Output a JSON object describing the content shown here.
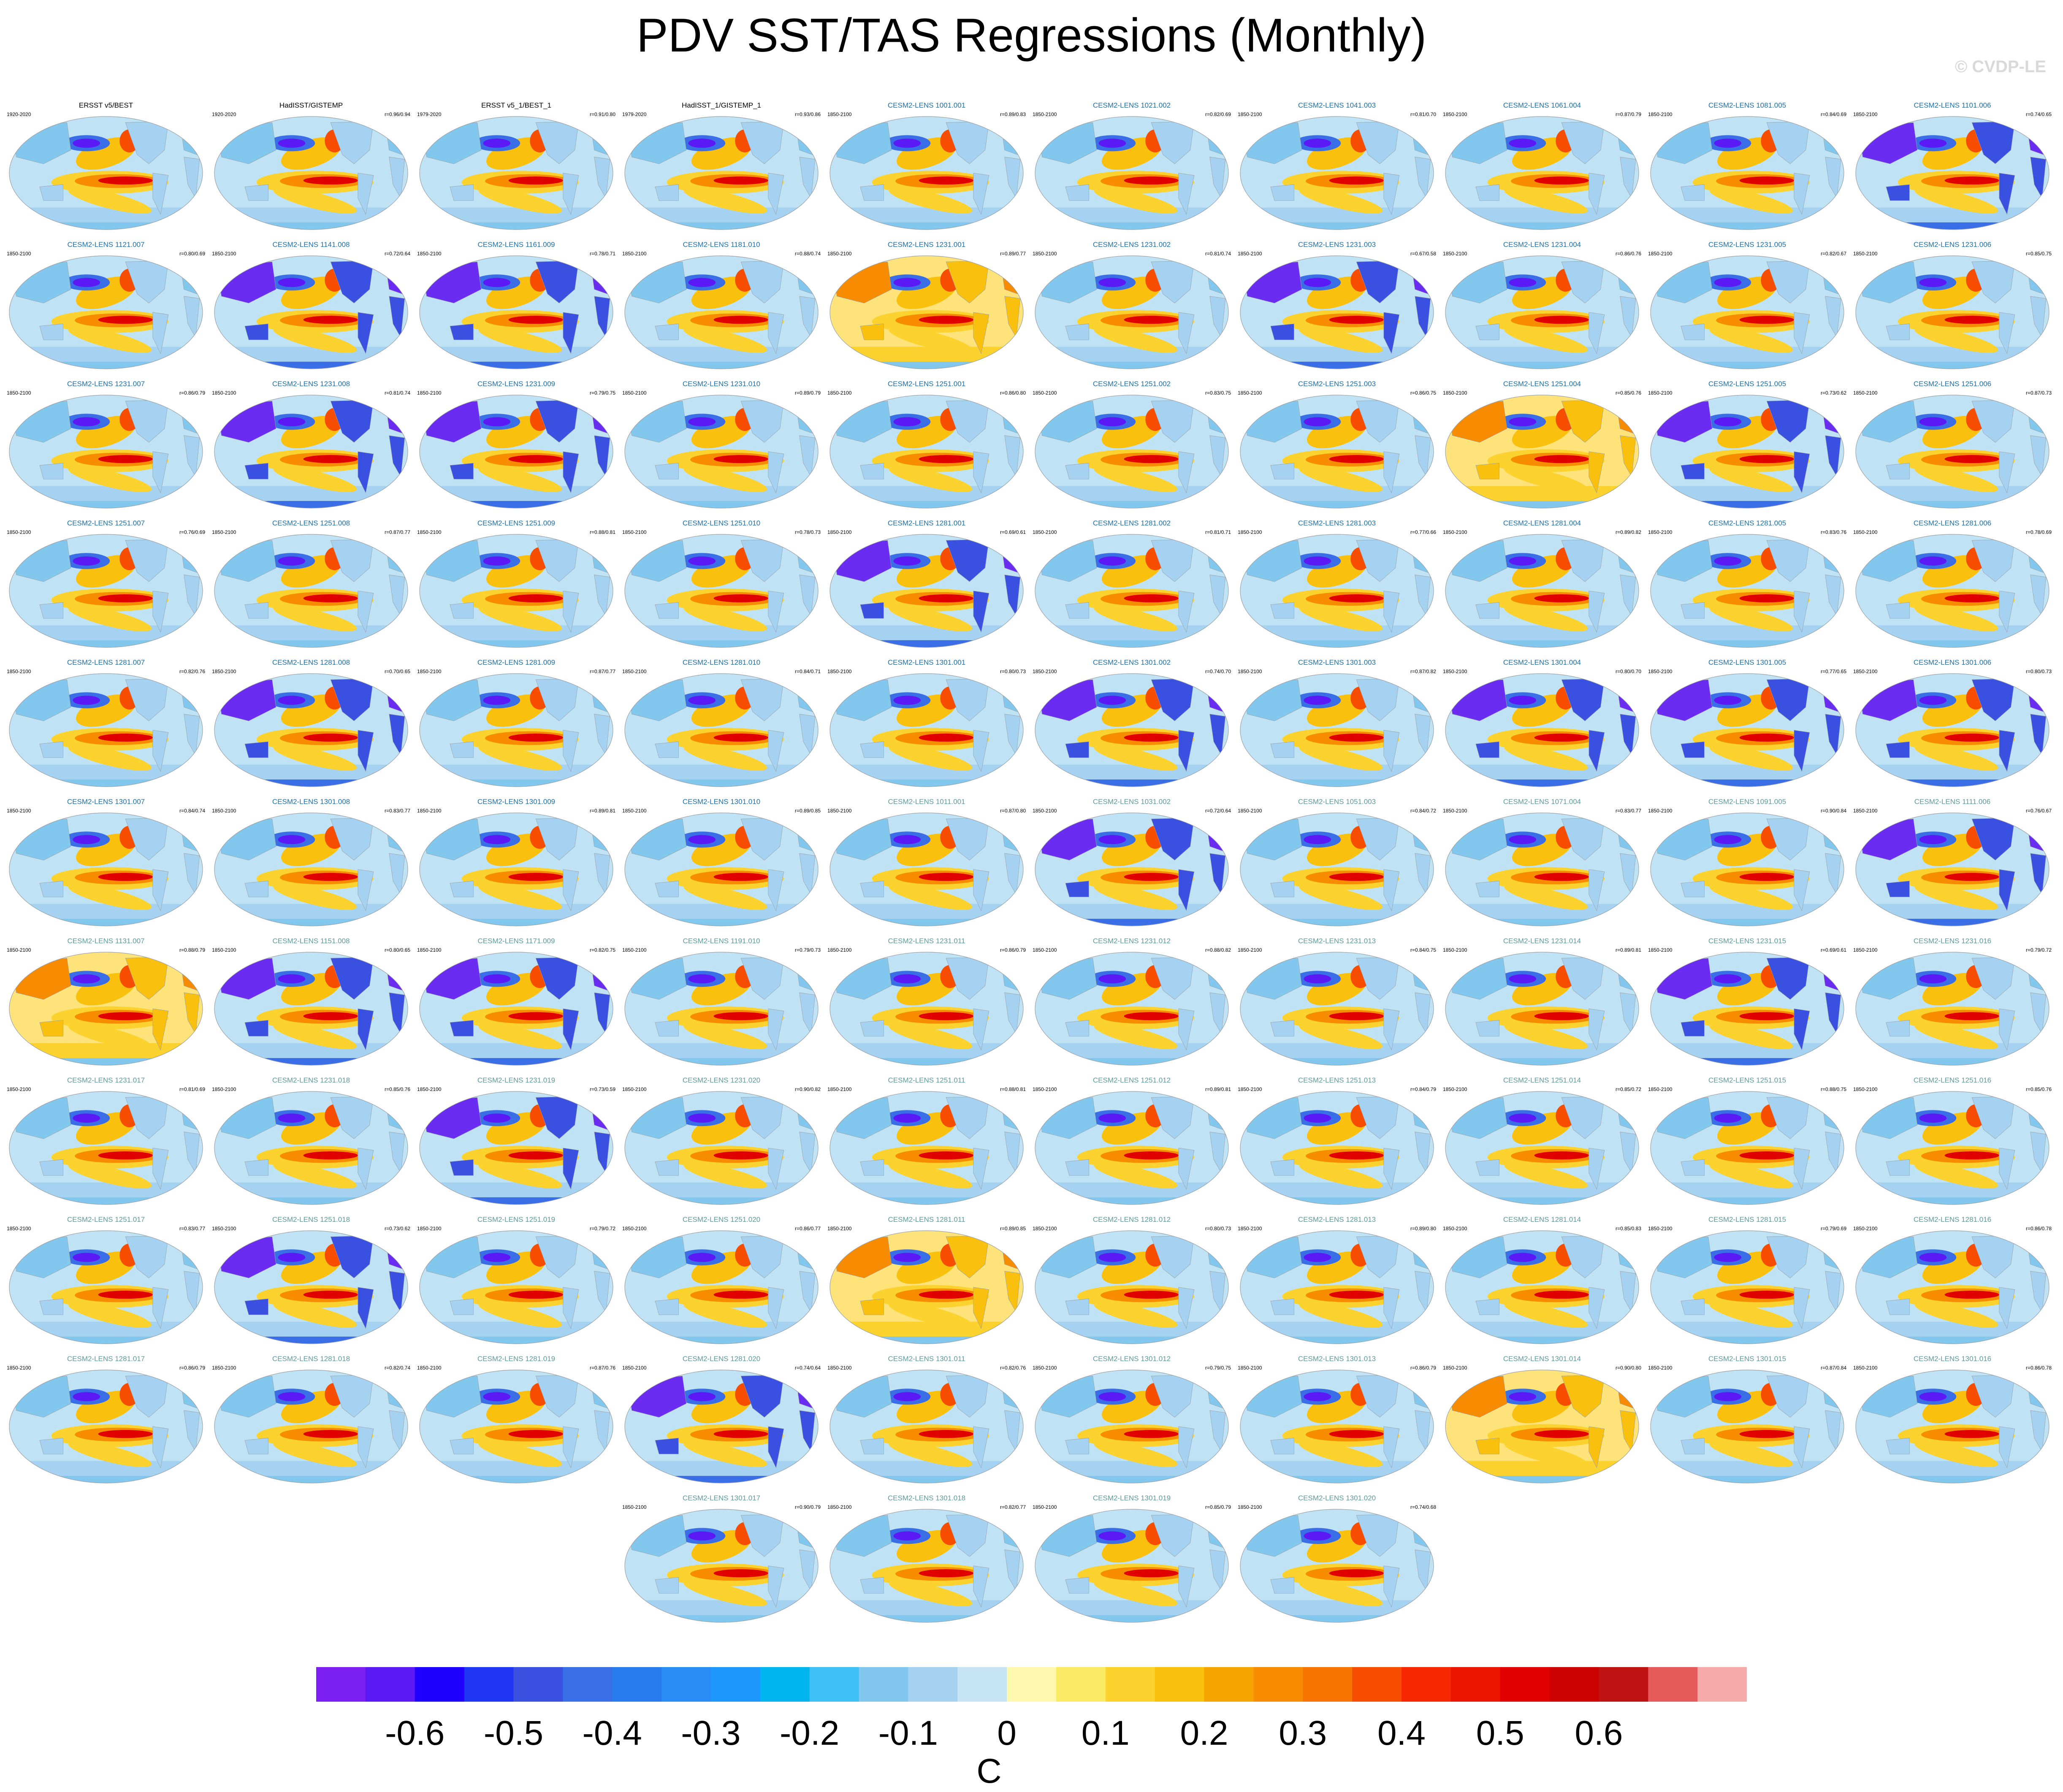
{
  "title": "PDV SST/TAS Regressions (Monthly)",
  "watermark": "© CVDP-LE",
  "colors": {
    "obs_title": "#000000",
    "lens_title_a": "#1f6fa8",
    "lens_title_b": "#5f9a9a",
    "map_border": "#9aa0a6"
  },
  "panels": [
    {
      "title": "ERSST v5/BEST",
      "period": "1920-2020",
      "r": "",
      "style": "obs",
      "pattern": "obs"
    },
    {
      "title": "HadISST/GISTEMP",
      "period": "1920-2020",
      "r": "r=0.96/0.94",
      "style": "obs",
      "pattern": "obs"
    },
    {
      "title": "ERSST v5_1/BEST_1",
      "period": "1979-2020",
      "r": "r=0.91/0.80",
      "style": "obs",
      "pattern": "obs"
    },
    {
      "title": "HadISST_1/GISTEMP_1",
      "period": "1979-2020",
      "r": "r=0.93/0.86",
      "style": "obs",
      "pattern": "obs"
    },
    {
      "title": "CESM2-LENS 1001.001",
      "period": "1850-2100",
      "r": "r=0.89/0.83",
      "style": "a",
      "pattern": "std"
    },
    {
      "title": "CESM2-LENS 1021.002",
      "period": "1850-2100",
      "r": "r=0.82/0.69",
      "style": "a",
      "pattern": "std"
    },
    {
      "title": "CESM2-LENS 1041.003",
      "period": "1850-2100",
      "r": "r=0.81/0.70",
      "style": "a",
      "pattern": "std"
    },
    {
      "title": "CESM2-LENS 1061.004",
      "period": "1850-2100",
      "r": "r=0.87/0.79",
      "style": "a",
      "pattern": "std"
    },
    {
      "title": "CESM2-LENS 1081.005",
      "period": "1850-2100",
      "r": "r=0.84/0.69",
      "style": "a",
      "pattern": "std"
    },
    {
      "title": "CESM2-LENS 1101.006",
      "period": "1850-2100",
      "r": "r=0.74/0.65",
      "style": "a",
      "pattern": "cold"
    },
    {
      "title": "CESM2-LENS 1121.007",
      "period": "1850-2100",
      "r": "r=0.80/0.69",
      "style": "a",
      "pattern": "std"
    },
    {
      "title": "CESM2-LENS 1141.008",
      "period": "1850-2100",
      "r": "r=0.72/0.64",
      "style": "a",
      "pattern": "cold"
    },
    {
      "title": "CESM2-LENS 1161.009",
      "period": "1850-2100",
      "r": "r=0.78/0.71",
      "style": "a",
      "pattern": "cold"
    },
    {
      "title": "CESM2-LENS 1181.010",
      "period": "1850-2100",
      "r": "r=0.88/0.74",
      "style": "a",
      "pattern": "std"
    },
    {
      "title": "CESM2-LENS 1231.001",
      "period": "1850-2100",
      "r": "r=0.89/0.77",
      "style": "a",
      "pattern": "warm"
    },
    {
      "title": "CESM2-LENS 1231.002",
      "period": "1850-2100",
      "r": "r=0.81/0.74",
      "style": "a",
      "pattern": "std"
    },
    {
      "title": "CESM2-LENS 1231.003",
      "period": "1850-2100",
      "r": "r=0.67/0.58",
      "style": "a",
      "pattern": "cold"
    },
    {
      "title": "CESM2-LENS 1231.004",
      "period": "1850-2100",
      "r": "r=0.86/0.76",
      "style": "a",
      "pattern": "std"
    },
    {
      "title": "CESM2-LENS 1231.005",
      "period": "1850-2100",
      "r": "r=0.82/0.67",
      "style": "a",
      "pattern": "std"
    },
    {
      "title": "CESM2-LENS 1231.006",
      "period": "1850-2100",
      "r": "r=0.85/0.75",
      "style": "a",
      "pattern": "std"
    },
    {
      "title": "CESM2-LENS 1231.007",
      "period": "1850-2100",
      "r": "r=0.86/0.79",
      "style": "a",
      "pattern": "std"
    },
    {
      "title": "CESM2-LENS 1231.008",
      "period": "1850-2100",
      "r": "r=0.81/0.74",
      "style": "a",
      "pattern": "cold"
    },
    {
      "title": "CESM2-LENS 1231.009",
      "period": "1850-2100",
      "r": "r=0.79/0.75",
      "style": "a",
      "pattern": "cold"
    },
    {
      "title": "CESM2-LENS 1231.010",
      "period": "1850-2100",
      "r": "r=0.89/0.79",
      "style": "a",
      "pattern": "std"
    },
    {
      "title": "CESM2-LENS 1251.001",
      "period": "1850-2100",
      "r": "r=0.86/0.80",
      "style": "a",
      "pattern": "std"
    },
    {
      "title": "CESM2-LENS 1251.002",
      "period": "1850-2100",
      "r": "r=0.83/0.75",
      "style": "a",
      "pattern": "std"
    },
    {
      "title": "CESM2-LENS 1251.003",
      "period": "1850-2100",
      "r": "r=0.86/0.75",
      "style": "a",
      "pattern": "std"
    },
    {
      "title": "CESM2-LENS 1251.004",
      "period": "1850-2100",
      "r": "r=0.85/0.76",
      "style": "a",
      "pattern": "warm"
    },
    {
      "title": "CESM2-LENS 1251.005",
      "period": "1850-2100",
      "r": "r=0.73/0.62",
      "style": "a",
      "pattern": "cold"
    },
    {
      "title": "CESM2-LENS 1251.006",
      "period": "1850-2100",
      "r": "r=0.87/0.73",
      "style": "a",
      "pattern": "std"
    },
    {
      "title": "CESM2-LENS 1251.007",
      "period": "1850-2100",
      "r": "r=0.76/0.69",
      "style": "a",
      "pattern": "std"
    },
    {
      "title": "CESM2-LENS 1251.008",
      "period": "1850-2100",
      "r": "r=0.87/0.77",
      "style": "a",
      "pattern": "std"
    },
    {
      "title": "CESM2-LENS 1251.009",
      "period": "1850-2100",
      "r": "r=0.88/0.81",
      "style": "a",
      "pattern": "std"
    },
    {
      "title": "CESM2-LENS 1251.010",
      "period": "1850-2100",
      "r": "r=0.78/0.73",
      "style": "a",
      "pattern": "std"
    },
    {
      "title": "CESM2-LENS 1281.001",
      "period": "1850-2100",
      "r": "r=0.69/0.61",
      "style": "a",
      "pattern": "cold"
    },
    {
      "title": "CESM2-LENS 1281.002",
      "period": "1850-2100",
      "r": "r=0.81/0.71",
      "style": "a",
      "pattern": "std"
    },
    {
      "title": "CESM2-LENS 1281.003",
      "period": "1850-2100",
      "r": "r=0.77/0.66",
      "style": "a",
      "pattern": "std"
    },
    {
      "title": "CESM2-LENS 1281.004",
      "period": "1850-2100",
      "r": "r=0.89/0.82",
      "style": "a",
      "pattern": "std"
    },
    {
      "title": "CESM2-LENS 1281.005",
      "period": "1850-2100",
      "r": "r=0.83/0.76",
      "style": "a",
      "pattern": "std"
    },
    {
      "title": "CESM2-LENS 1281.006",
      "period": "1850-2100",
      "r": "r=0.78/0.69",
      "style": "a",
      "pattern": "std"
    },
    {
      "title": "CESM2-LENS 1281.007",
      "period": "1850-2100",
      "r": "r=0.82/0.76",
      "style": "a",
      "pattern": "std"
    },
    {
      "title": "CESM2-LENS 1281.008",
      "period": "1850-2100",
      "r": "r=0.70/0.65",
      "style": "a",
      "pattern": "cold"
    },
    {
      "title": "CESM2-LENS 1281.009",
      "period": "1850-2100",
      "r": "r=0.87/0.77",
      "style": "a",
      "pattern": "std"
    },
    {
      "title": "CESM2-LENS 1281.010",
      "period": "1850-2100",
      "r": "r=0.84/0.71",
      "style": "a",
      "pattern": "std"
    },
    {
      "title": "CESM2-LENS 1301.001",
      "period": "1850-2100",
      "r": "r=0.80/0.73",
      "style": "a",
      "pattern": "std"
    },
    {
      "title": "CESM2-LENS 1301.002",
      "period": "1850-2100",
      "r": "r=0.74/0.70",
      "style": "a",
      "pattern": "cold"
    },
    {
      "title": "CESM2-LENS 1301.003",
      "period": "1850-2100",
      "r": "r=0.87/0.82",
      "style": "a",
      "pattern": "std"
    },
    {
      "title": "CESM2-LENS 1301.004",
      "period": "1850-2100",
      "r": "r=0.80/0.70",
      "style": "a",
      "pattern": "cold"
    },
    {
      "title": "CESM2-LENS 1301.005",
      "period": "1850-2100",
      "r": "r=0.77/0.65",
      "style": "a",
      "pattern": "cold"
    },
    {
      "title": "CESM2-LENS 1301.006",
      "period": "1850-2100",
      "r": "r=0.80/0.73",
      "style": "a",
      "pattern": "cold"
    },
    {
      "title": "CESM2-LENS 1301.007",
      "period": "1850-2100",
      "r": "r=0.84/0.74",
      "style": "a",
      "pattern": "std"
    },
    {
      "title": "CESM2-LENS 1301.008",
      "period": "1850-2100",
      "r": "r=0.83/0.77",
      "style": "a",
      "pattern": "std"
    },
    {
      "title": "CESM2-LENS 1301.009",
      "period": "1850-2100",
      "r": "r=0.89/0.81",
      "style": "a",
      "pattern": "std"
    },
    {
      "title": "CESM2-LENS 1301.010",
      "period": "1850-2100",
      "r": "r=0.89/0.85",
      "style": "a",
      "pattern": "std"
    },
    {
      "title": "CESM2-LENS 1011.001",
      "period": "1850-2100",
      "r": "r=0.87/0.80",
      "style": "b",
      "pattern": "std"
    },
    {
      "title": "CESM2-LENS 1031.002",
      "period": "1850-2100",
      "r": "r=0.72/0.64",
      "style": "b",
      "pattern": "cold"
    },
    {
      "title": "CESM2-LENS 1051.003",
      "period": "1850-2100",
      "r": "r=0.84/0.72",
      "style": "b",
      "pattern": "std"
    },
    {
      "title": "CESM2-LENS 1071.004",
      "period": "1850-2100",
      "r": "r=0.83/0.77",
      "style": "b",
      "pattern": "std"
    },
    {
      "title": "CESM2-LENS 1091.005",
      "period": "1850-2100",
      "r": "r=0.90/0.84",
      "style": "b",
      "pattern": "std"
    },
    {
      "title": "CESM2-LENS 1111.006",
      "period": "1850-2100",
      "r": "r=0.76/0.67",
      "style": "b",
      "pattern": "cold"
    },
    {
      "title": "CESM2-LENS 1131.007",
      "period": "1850-2100",
      "r": "r=0.88/0.79",
      "style": "b",
      "pattern": "warm"
    },
    {
      "title": "CESM2-LENS 1151.008",
      "period": "1850-2100",
      "r": "r=0.80/0.65",
      "style": "b",
      "pattern": "cold"
    },
    {
      "title": "CESM2-LENS 1171.009",
      "period": "1850-2100",
      "r": "r=0.82/0.75",
      "style": "b",
      "pattern": "cold"
    },
    {
      "title": "CESM2-LENS 1191.010",
      "period": "1850-2100",
      "r": "r=0.79/0.73",
      "style": "b",
      "pattern": "std"
    },
    {
      "title": "CESM2-LENS 1231.011",
      "period": "1850-2100",
      "r": "r=0.86/0.79",
      "style": "b",
      "pattern": "std"
    },
    {
      "title": "CESM2-LENS 1231.012",
      "period": "1850-2100",
      "r": "r=0.88/0.82",
      "style": "b",
      "pattern": "std"
    },
    {
      "title": "CESM2-LENS 1231.013",
      "period": "1850-2100",
      "r": "r=0.84/0.75",
      "style": "b",
      "pattern": "std"
    },
    {
      "title": "CESM2-LENS 1231.014",
      "period": "1850-2100",
      "r": "r=0.89/0.81",
      "style": "b",
      "pattern": "std"
    },
    {
      "title": "CESM2-LENS 1231.015",
      "period": "1850-2100",
      "r": "r=0.69/0.61",
      "style": "b",
      "pattern": "cold"
    },
    {
      "title": "CESM2-LENS 1231.016",
      "period": "1850-2100",
      "r": "r=0.79/0.72",
      "style": "b",
      "pattern": "std"
    },
    {
      "title": "CESM2-LENS 1231.017",
      "period": "1850-2100",
      "r": "r=0.81/0.69",
      "style": "b",
      "pattern": "std"
    },
    {
      "title": "CESM2-LENS 1231.018",
      "period": "1850-2100",
      "r": "r=0.85/0.76",
      "style": "b",
      "pattern": "std"
    },
    {
      "title": "CESM2-LENS 1231.019",
      "period": "1850-2100",
      "r": "r=0.73/0.59",
      "style": "b",
      "pattern": "cold"
    },
    {
      "title": "CESM2-LENS 1231.020",
      "period": "1850-2100",
      "r": "r=0.90/0.82",
      "style": "b",
      "pattern": "std"
    },
    {
      "title": "CESM2-LENS 1251.011",
      "period": "1850-2100",
      "r": "r=0.88/0.81",
      "style": "b",
      "pattern": "std"
    },
    {
      "title": "CESM2-LENS 1251.012",
      "period": "1850-2100",
      "r": "r=0.89/0.81",
      "style": "b",
      "pattern": "std"
    },
    {
      "title": "CESM2-LENS 1251.013",
      "period": "1850-2100",
      "r": "r=0.84/0.79",
      "style": "b",
      "pattern": "std"
    },
    {
      "title": "CESM2-LENS 1251.014",
      "period": "1850-2100",
      "r": "r=0.85/0.72",
      "style": "b",
      "pattern": "std"
    },
    {
      "title": "CESM2-LENS 1251.015",
      "period": "1850-2100",
      "r": "r=0.88/0.75",
      "style": "b",
      "pattern": "std"
    },
    {
      "title": "CESM2-LENS 1251.016",
      "period": "1850-2100",
      "r": "r=0.85/0.76",
      "style": "b",
      "pattern": "std"
    },
    {
      "title": "CESM2-LENS 1251.017",
      "period": "1850-2100",
      "r": "r=0.83/0.77",
      "style": "b",
      "pattern": "std"
    },
    {
      "title": "CESM2-LENS 1251.018",
      "period": "1850-2100",
      "r": "r=0.73/0.62",
      "style": "b",
      "pattern": "cold"
    },
    {
      "title": "CESM2-LENS 1251.019",
      "period": "1850-2100",
      "r": "r=0.79/0.72",
      "style": "b",
      "pattern": "std"
    },
    {
      "title": "CESM2-LENS 1251.020",
      "period": "1850-2100",
      "r": "r=0.86/0.77",
      "style": "b",
      "pattern": "std"
    },
    {
      "title": "CESM2-LENS 1281.011",
      "period": "1850-2100",
      "r": "r=0.89/0.85",
      "style": "b",
      "pattern": "warm"
    },
    {
      "title": "CESM2-LENS 1281.012",
      "period": "1850-2100",
      "r": "r=0.80/0.73",
      "style": "b",
      "pattern": "std"
    },
    {
      "title": "CESM2-LENS 1281.013",
      "period": "1850-2100",
      "r": "r=0.89/0.80",
      "style": "b",
      "pattern": "std"
    },
    {
      "title": "CESM2-LENS 1281.014",
      "period": "1850-2100",
      "r": "r=0.85/0.83",
      "style": "b",
      "pattern": "std"
    },
    {
      "title": "CESM2-LENS 1281.015",
      "period": "1850-2100",
      "r": "r=0.79/0.69",
      "style": "b",
      "pattern": "std"
    },
    {
      "title": "CESM2-LENS 1281.016",
      "period": "1850-2100",
      "r": "r=0.86/0.78",
      "style": "b",
      "pattern": "std"
    },
    {
      "title": "CESM2-LENS 1281.017",
      "period": "1850-2100",
      "r": "r=0.86/0.79",
      "style": "b",
      "pattern": "std"
    },
    {
      "title": "CESM2-LENS 1281.018",
      "period": "1850-2100",
      "r": "r=0.82/0.74",
      "style": "b",
      "pattern": "std"
    },
    {
      "title": "CESM2-LENS 1281.019",
      "period": "1850-2100",
      "r": "r=0.87/0.76",
      "style": "b",
      "pattern": "std"
    },
    {
      "title": "CESM2-LENS 1281.020",
      "period": "1850-2100",
      "r": "r=0.74/0.64",
      "style": "b",
      "pattern": "cold"
    },
    {
      "title": "CESM2-LENS 1301.011",
      "period": "1850-2100",
      "r": "r=0.82/0.76",
      "style": "b",
      "pattern": "std"
    },
    {
      "title": "CESM2-LENS 1301.012",
      "period": "1850-2100",
      "r": "r=0.79/0.75",
      "style": "b",
      "pattern": "std"
    },
    {
      "title": "CESM2-LENS 1301.013",
      "period": "1850-2100",
      "r": "r=0.86/0.79",
      "style": "b",
      "pattern": "std"
    },
    {
      "title": "CESM2-LENS 1301.014",
      "period": "1850-2100",
      "r": "r=0.90/0.80",
      "style": "b",
      "pattern": "warm"
    },
    {
      "title": "CESM2-LENS 1301.015",
      "period": "1850-2100",
      "r": "r=0.87/0.84",
      "style": "b",
      "pattern": "std"
    },
    {
      "title": "CESM2-LENS 1301.016",
      "period": "1850-2100",
      "r": "r=0.86/0.78",
      "style": "b",
      "pattern": "std"
    },
    {
      "title": "CESM2-LENS 1301.017",
      "period": "1850-2100",
      "r": "r=0.90/0.79",
      "style": "b",
      "pattern": "std"
    },
    {
      "title": "CESM2-LENS 1301.018",
      "period": "1850-2100",
      "r": "r=0.82/0.77",
      "style": "b",
      "pattern": "std"
    },
    {
      "title": "CESM2-LENS 1301.019",
      "period": "1850-2100",
      "r": "r=0.85/0.79",
      "style": "b",
      "pattern": "std"
    },
    {
      "title": "CESM2-LENS 1301.020",
      "period": "1850-2100",
      "r": "r=0.74/0.68",
      "style": "b",
      "pattern": "std"
    }
  ],
  "colorbar": {
    "colors": [
      "#7b1ff2",
      "#5a19f5",
      "#1f00ff",
      "#1f37f5",
      "#3a50e0",
      "#3a6ee6",
      "#2a7bef",
      "#2a8cf5",
      "#1e98ff",
      "#00b4f0",
      "#3cc0f5",
      "#82c8ee",
      "#a6d2f2",
      "#c6e4f4",
      "#fff9b0",
      "#fbeb64",
      "#fbd22e",
      "#fac00e",
      "#f7a400",
      "#f78c00",
      "#f77400",
      "#f74d00",
      "#f52800",
      "#eb1400",
      "#e10000",
      "#cd0000",
      "#c01414",
      "#e65a5a",
      "#f5aaaa"
    ],
    "tick_labels": [
      "-0.6",
      "-0.5",
      "-0.4",
      "-0.3",
      "-0.2",
      "-0.1",
      "0",
      "0.1",
      "0.2",
      "0.3",
      "0.4",
      "0.5",
      "0.6"
    ],
    "tick_boundary_index": [
      2,
      4,
      6,
      8,
      10,
      12,
      14,
      16,
      18,
      20,
      22,
      24,
      26
    ],
    "units": "C"
  }
}
